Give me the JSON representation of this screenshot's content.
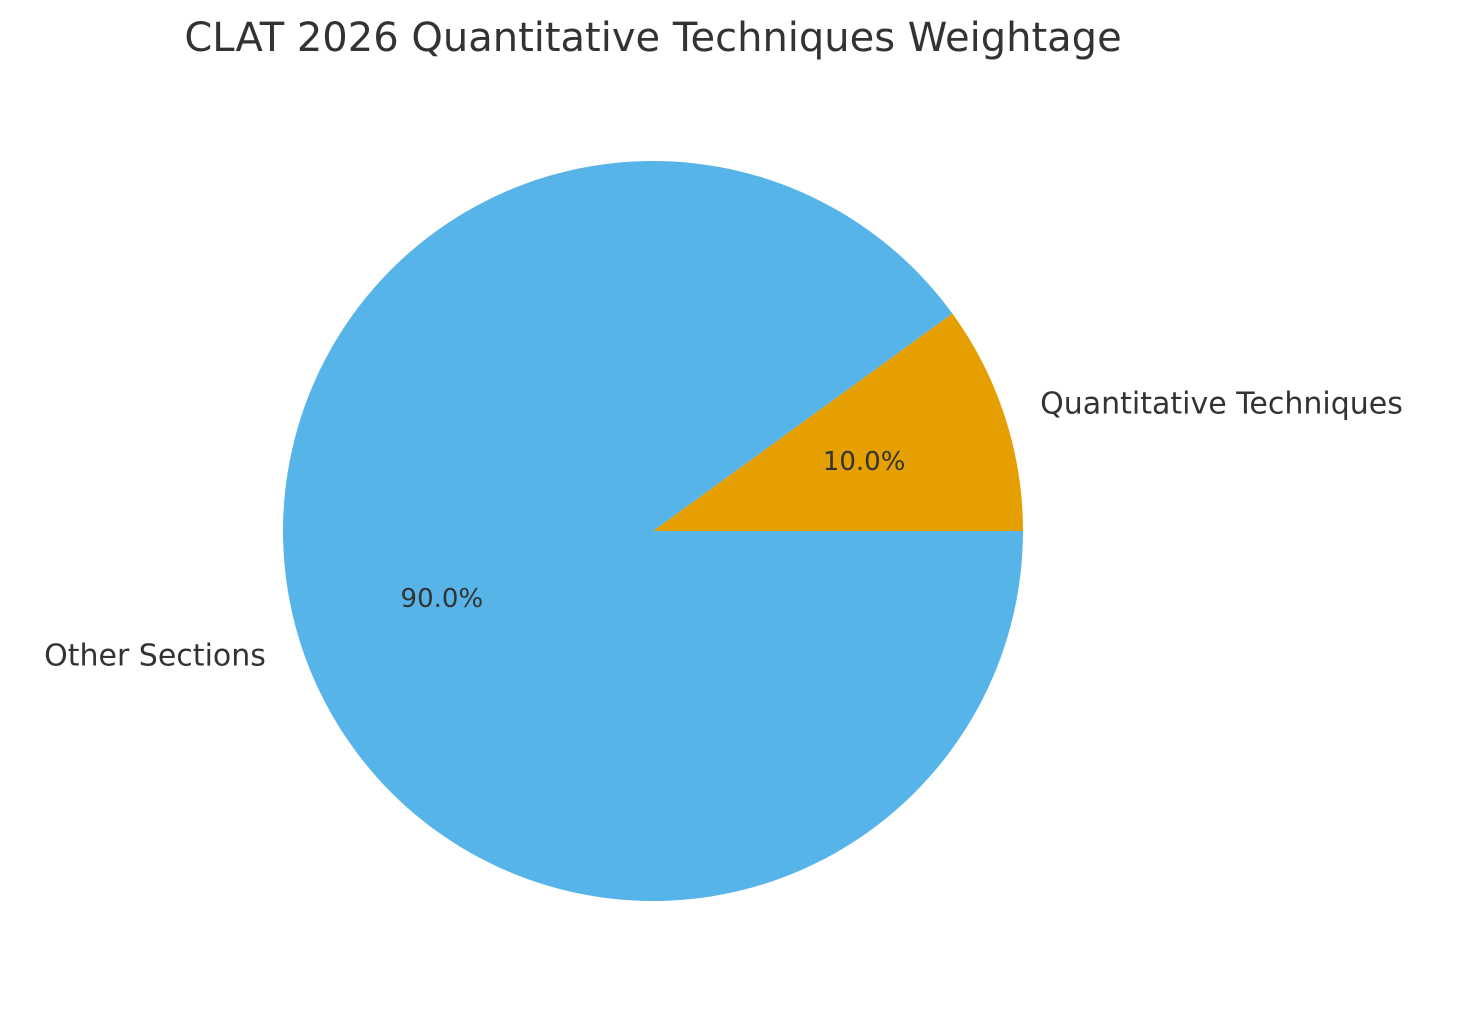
{
  "chart_data": {
    "type": "pie",
    "title": "CLAT 2026 Quantitative Techniques Weightage",
    "categories": [
      "Quantitative Techniques",
      "Other Sections"
    ],
    "values": [
      10,
      90
    ],
    "value_labels": [
      "10.0%",
      "90.0%"
    ],
    "colors": [
      "#E69F00",
      "#56B4E9"
    ]
  }
}
